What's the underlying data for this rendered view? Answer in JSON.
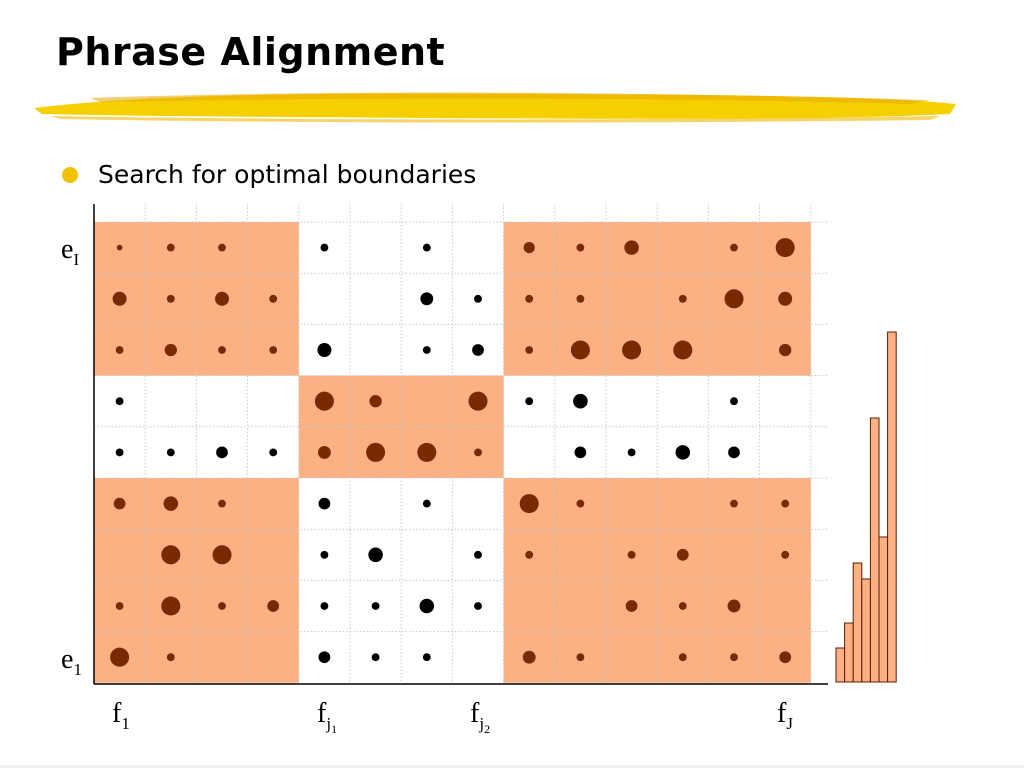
{
  "slide": {
    "title": "Phrase Alignment",
    "bullet": "Search for optimal boundaries"
  },
  "colors": {
    "block_fill": "#fbb183",
    "block_dot": "#7a2a00",
    "plain_dot": "#000000",
    "grid_line": "#c8c8c8",
    "bullet": "#f2c200",
    "bar_fill": "#fbb183",
    "bar_stroke": "#5a1e00"
  },
  "labels": {
    "e_top": {
      "base": "e",
      "sub": "I"
    },
    "e_bottom": {
      "base": "e",
      "sub": "1"
    },
    "f_first": {
      "base": "f",
      "sub": "1"
    },
    "f_j1": {
      "base": "f",
      "sub": "j",
      "subsub": "1"
    },
    "f_j2": {
      "base": "f",
      "sub": "j",
      "subsub": "2"
    },
    "f_last": {
      "base": "f",
      "sub": "J"
    }
  },
  "grid": {
    "columns": 14,
    "rows": 9,
    "column_blocks": [
      4,
      4,
      6
    ],
    "row_blocks": [
      3,
      2,
      4
    ],
    "shaded_blocks": [
      [
        0,
        0
      ],
      [
        0,
        2
      ],
      [
        1,
        1
      ],
      [
        2,
        0
      ],
      [
        2,
        2
      ]
    ],
    "dots": [
      [
        0,
        1.0,
        1.4,
        1.4,
        0,
        1.4,
        0,
        1.4,
        0,
        2.0,
        1.4,
        2.6,
        0,
        1.4,
        3.4
      ],
      [
        0,
        2.5,
        1.4,
        2.5,
        1.4,
        0,
        0,
        2.3,
        1.4,
        1.4,
        1.4,
        0,
        1.4,
        3.4,
        2.5
      ],
      [
        0,
        1.4,
        2.2,
        1.4,
        1.4,
        2.5,
        0,
        1.4,
        2.1,
        1.4,
        3.4,
        3.4,
        3.4,
        0,
        2.2
      ],
      [
        0,
        1.4,
        0,
        0,
        0,
        3.4,
        2.2,
        0,
        3.4,
        1.4,
        2.6,
        0,
        0,
        1.4,
        0
      ],
      [
        0,
        1.4,
        1.4,
        2.1,
        1.4,
        2.3,
        3.4,
        3.4,
        1.4,
        0,
        2.1,
        1.4,
        2.6,
        2.1,
        0
      ],
      [
        0,
        2.1,
        2.6,
        1.4,
        0,
        2.1,
        0,
        1.4,
        0,
        3.4,
        1.4,
        0,
        0,
        1.4,
        1.4
      ],
      [
        0,
        0,
        3.4,
        3.4,
        0,
        1.4,
        2.6,
        0,
        1.4,
        1.4,
        0,
        1.4,
        2.1,
        0,
        1.4
      ],
      [
        0,
        1.4,
        3.4,
        1.4,
        2.1,
        1.4,
        1.4,
        2.6,
        1.4,
        0,
        0,
        2.1,
        1.4,
        2.3,
        0
      ],
      [
        0,
        3.4,
        1.4,
        0,
        0,
        2.1,
        1.4,
        1.4,
        0,
        2.3,
        1.4,
        0,
        1.4,
        1.4,
        2.1
      ]
    ]
  },
  "histogram": {
    "values": [
      34,
      59,
      119,
      103,
      264,
      145,
      350
    ]
  }
}
